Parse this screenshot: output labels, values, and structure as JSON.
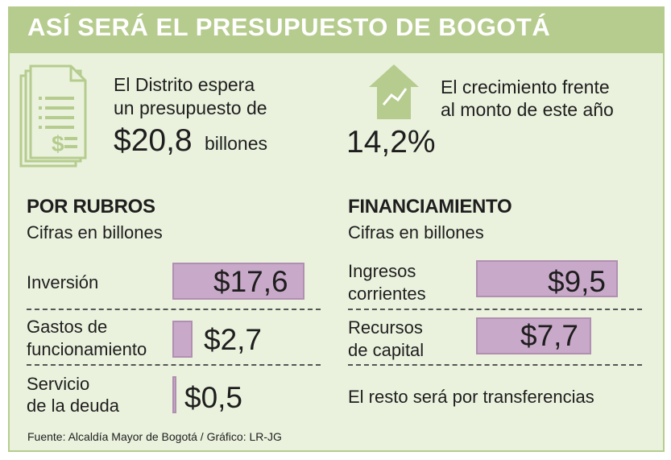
{
  "title": "ASÍ SERÁ EL PRESUPUESTO DE BOGOTÁ",
  "budget": {
    "line1": "El Distrito espera",
    "line2": "un presupuesto de",
    "amount": "$20,8",
    "unit": "billones"
  },
  "growth": {
    "line1": "El crecimiento frente",
    "line2": "al monto de este año",
    "value": "14,2%"
  },
  "chart_data": [
    {
      "type": "bar",
      "title": "POR RUBROS",
      "subtitle": "Cifras en billones",
      "categories": [
        "Inversión",
        "Gastos de funcionamiento",
        "Servicio de la deuda"
      ],
      "category_lines": [
        [
          "Inversión"
        ],
        [
          "Gastos de",
          "funcionamiento"
        ],
        [
          "Servicio",
          "de la deuda"
        ]
      ],
      "values": [
        17.6,
        2.7,
        0.5
      ],
      "value_labels": [
        "$17,6",
        "$2,7",
        "$0,5"
      ]
    },
    {
      "type": "bar",
      "title": "FINANCIAMIENTO",
      "subtitle": "Cifras en billones",
      "categories": [
        "Ingresos corrientes",
        "Recursos de capital"
      ],
      "category_lines": [
        [
          "Ingresos",
          "corrientes"
        ],
        [
          "Recursos",
          "de capital"
        ]
      ],
      "values": [
        9.5,
        7.7
      ],
      "value_labels": [
        "$9,5",
        "$7,7"
      ],
      "note": "El resto será por transferencias"
    }
  ],
  "colors": {
    "accent": "#b6cc8e",
    "background": "#eaf2dd",
    "bar": "#c9a9c9"
  },
  "footnote": "Fuente: Alcaldía Mayor de Bogotá / Gráfico: LR-JG"
}
